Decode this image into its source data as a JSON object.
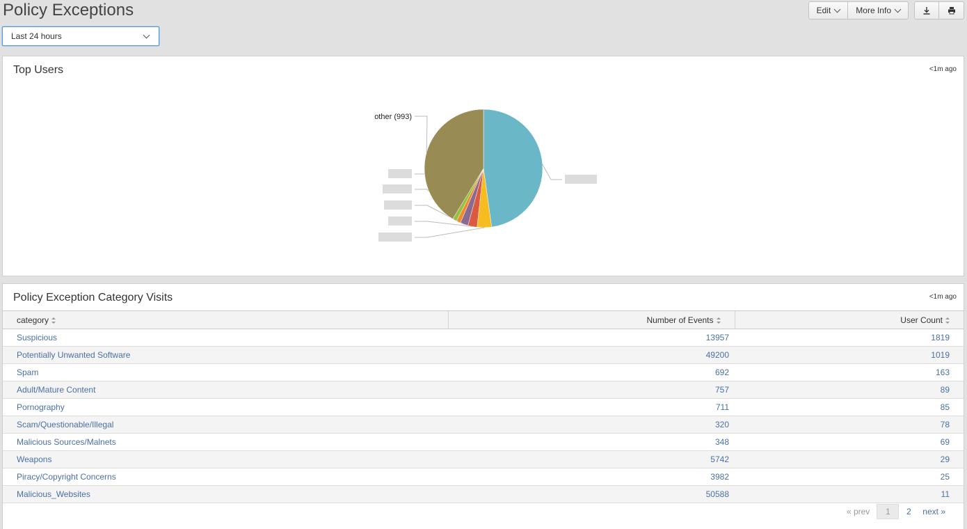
{
  "page": {
    "title": "Policy Exceptions"
  },
  "toolbar": {
    "edit_label": "Edit",
    "more_info_label": "More Info",
    "export_icon": "download-icon",
    "print_icon": "print-icon"
  },
  "time_picker": {
    "value": "Last 24 hours"
  },
  "top_users": {
    "title": "Top Users",
    "updated": "<1m ago"
  },
  "chart_data": {
    "type": "pie",
    "title": "Top Users",
    "slices": [
      {
        "label": "",
        "value": 1150,
        "color": "#6ab7c8"
      },
      {
        "label": "",
        "value": 95,
        "color": "#f7bc1f"
      },
      {
        "label": "",
        "value": 60,
        "color": "#db5a3f"
      },
      {
        "label": "",
        "value": 52,
        "color": "#8b6a92"
      },
      {
        "label": "",
        "value": 28,
        "color": "#f08b2d"
      },
      {
        "label": "",
        "value": 28,
        "color": "#98bf3e"
      },
      {
        "label": "other (993)",
        "value": 993,
        "color": "#998b54"
      }
    ]
  },
  "category_visits": {
    "title": "Policy Exception Category Visits",
    "updated": "<1m ago",
    "columns": [
      "category",
      "Number of Events",
      "User Count"
    ],
    "rows": [
      [
        "Suspicious",
        "13957",
        "1819"
      ],
      [
        "Potentially Unwanted Software",
        "49200",
        "1019"
      ],
      [
        "Spam",
        "692",
        "163"
      ],
      [
        "Adult/Mature Content",
        "757",
        "89"
      ],
      [
        "Pornography",
        "711",
        "85"
      ],
      [
        "Scam/Questionable/Illegal",
        "320",
        "78"
      ],
      [
        "Malicious Sources/Malnets",
        "348",
        "69"
      ],
      [
        "Weapons",
        "5742",
        "29"
      ],
      [
        "Piracy/Copyright Concerns",
        "3982",
        "25"
      ],
      [
        "Malicious_Websites",
        "50588",
        "11"
      ]
    ]
  },
  "pager": {
    "prev": "« prev",
    "pages": [
      "1",
      "2"
    ],
    "active": "1",
    "next": "next »"
  }
}
